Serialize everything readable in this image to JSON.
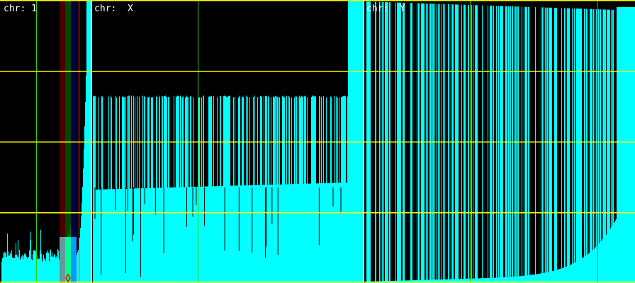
{
  "panels": [
    {
      "label": "chr: 1"
    },
    {
      "label": "chr:  X"
    },
    {
      "label": "chr:  Y"
    }
  ],
  "colors": {
    "background": "#000000",
    "coverage": "#00ffff",
    "gridline": "#ffff00",
    "marker_green": "#33cc00",
    "marker_red": "#cc0000",
    "separator": "#ffffff",
    "highlight_red": "#5a0000",
    "highlight_green": "#005a00",
    "highlight_blue": "#00005a"
  },
  "icons": {
    "marker": "red-diamond-marker"
  }
}
